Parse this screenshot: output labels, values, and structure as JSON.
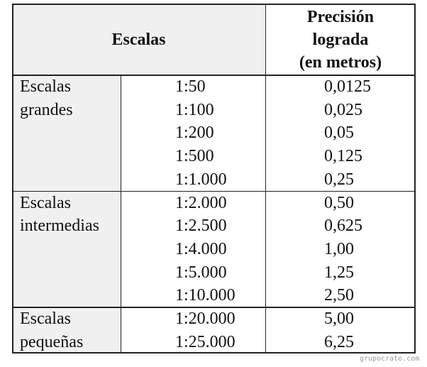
{
  "table": {
    "header": {
      "scales": "Escalas",
      "precision": [
        "Precisión",
        "lograda",
        "(en metros)"
      ]
    },
    "groups": [
      {
        "label": [
          "Escalas",
          "grandes"
        ],
        "rows": [
          [
            "1:50",
            "0,0125"
          ],
          [
            "1:100",
            "0,025"
          ],
          [
            "1:200",
            "0,05"
          ],
          [
            "1:500",
            "0,125"
          ],
          [
            "1:1.000",
            "0,25"
          ]
        ]
      },
      {
        "label": [
          "Escalas",
          "intermedias"
        ],
        "rows": [
          [
            "1:2.000",
            "0,50"
          ],
          [
            "1:2.500",
            "0,625"
          ],
          [
            "1:4.000",
            "1,00"
          ],
          [
            "1:5.000",
            "1,25"
          ],
          [
            "1:10.000",
            "2,50"
          ]
        ]
      },
      {
        "label": [
          "Escalas",
          "pequeñas"
        ],
        "rows": [
          [
            "1:20.000",
            "5,00"
          ],
          [
            "1:25.000",
            "6,25"
          ]
        ]
      }
    ]
  },
  "watermark": "grupocrato.com"
}
